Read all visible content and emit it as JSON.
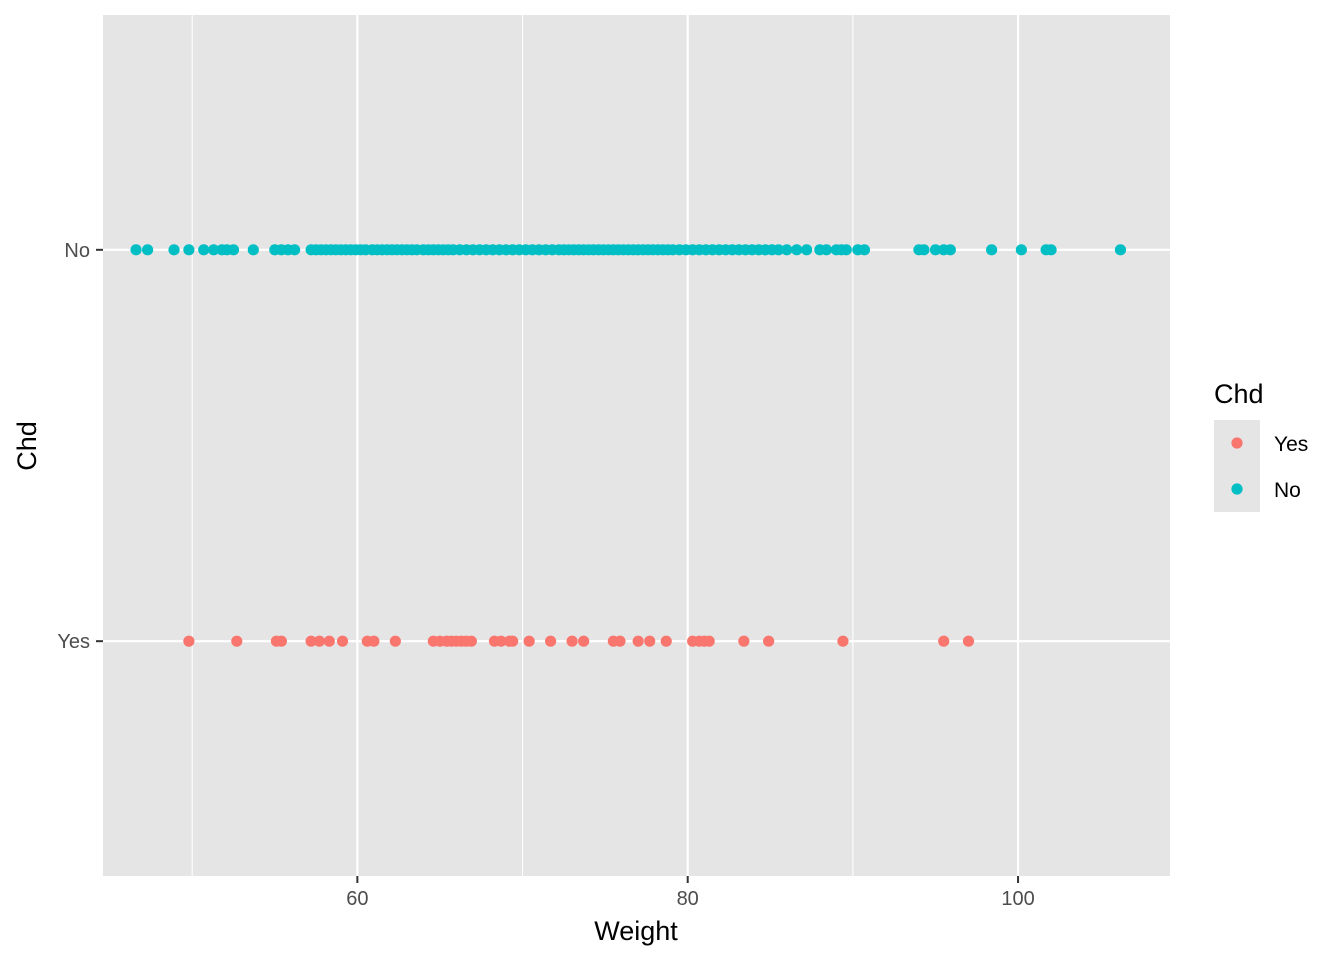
{
  "chart_data": {
    "type": "scatter",
    "xlabel": "Weight",
    "ylabel": "Chd",
    "xlim": [
      44.6,
      109.2
    ],
    "x_ticks": [
      60,
      80,
      100
    ],
    "x_tick_labels": [
      "60",
      "80",
      "100"
    ],
    "x_minor_ticks": [
      50,
      70,
      90
    ],
    "y_categories": [
      "Yes",
      "No"
    ],
    "grid": true,
    "legend": {
      "title": "Chd",
      "position": "right",
      "entries": [
        "Yes",
        "No"
      ]
    },
    "colors": {
      "Yes": "#F8766D",
      "No": "#00BFC4",
      "panel": "#E5E5E5",
      "grid": "#FFFFFF"
    },
    "series": [
      {
        "name": "Yes",
        "x": [
          49.8,
          52.7,
          55.1,
          55.4,
          57.2,
          57.7,
          58.3,
          59.1,
          60.6,
          61.0,
          62.3,
          64.6,
          65.0,
          65.4,
          65.7,
          66.0,
          66.3,
          66.6,
          66.9,
          68.3,
          68.7,
          69.2,
          69.4,
          70.4,
          71.7,
          73.0,
          73.7,
          75.5,
          75.9,
          77.0,
          77.7,
          78.7,
          80.3,
          80.7,
          81.0,
          81.3,
          83.4,
          84.9,
          89.4,
          95.5,
          97.0
        ]
      },
      {
        "name": "No",
        "x": [
          46.6,
          47.3,
          48.9,
          49.8,
          50.7,
          51.3,
          51.8,
          52.1,
          52.5,
          53.7,
          55.0,
          55.4,
          55.8,
          56.2,
          57.2,
          57.5,
          57.8,
          58.1,
          58.4,
          58.7,
          59.0,
          59.3,
          59.6,
          59.9,
          60.2,
          60.5,
          60.9,
          61.2,
          61.5,
          61.8,
          62.1,
          62.4,
          62.7,
          63.0,
          63.3,
          63.6,
          64.0,
          64.3,
          64.6,
          64.9,
          65.2,
          65.5,
          65.8,
          66.2,
          66.6,
          67.0,
          67.4,
          67.8,
          68.2,
          68.6,
          69.0,
          69.4,
          69.8,
          70.2,
          70.6,
          71.0,
          71.4,
          71.8,
          72.2,
          72.5,
          72.8,
          73.1,
          73.4,
          73.7,
          74.0,
          74.3,
          74.6,
          74.9,
          75.2,
          75.5,
          75.8,
          76.1,
          76.4,
          76.7,
          77.0,
          77.3,
          77.6,
          77.9,
          78.2,
          78.5,
          78.8,
          79.1,
          79.5,
          79.9,
          80.3,
          80.7,
          81.1,
          81.5,
          81.9,
          82.3,
          82.7,
          83.1,
          83.5,
          83.9,
          84.3,
          84.7,
          85.1,
          85.5,
          86.0,
          86.6,
          87.2,
          88.0,
          88.4,
          89.0,
          89.3,
          89.6,
          90.3,
          90.7,
          94.0,
          94.3,
          95.0,
          95.5,
          95.9,
          98.4,
          100.2,
          101.7,
          102.0,
          106.2
        ]
      }
    ]
  }
}
